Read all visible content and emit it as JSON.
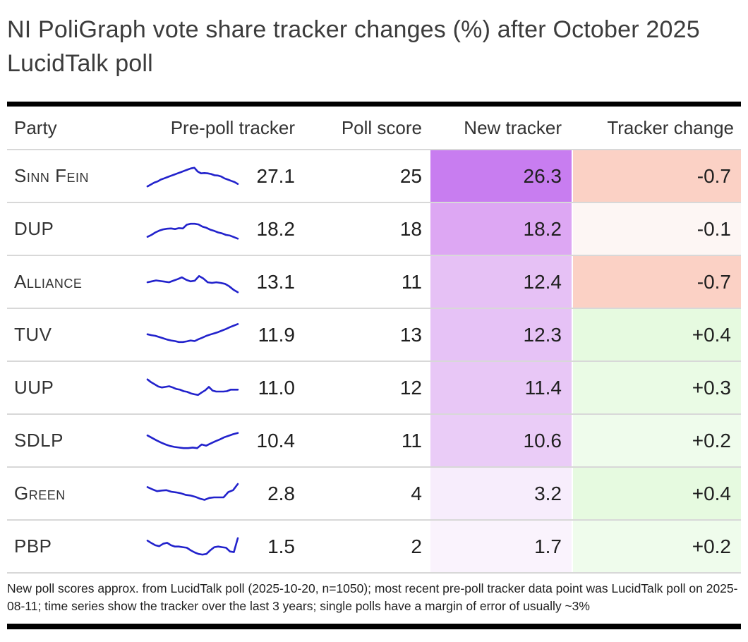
{
  "title": "NI PoliGraph vote share tracker changes (%) after October 2025 LucidTalk poll",
  "columns": [
    "Party",
    "Pre-poll tracker",
    "Poll score",
    "New tracker",
    "Tracker change"
  ],
  "footnote": "New poll scores approx. from LucidTalk poll (2025-10-20, n=1050); most recent pre-poll tracker data point was LucidTalk poll on 2025-08-11; time series show the tracker over the last 3 years; single polls have a margin of error of usually ~3%",
  "colors": {
    "spark_line": "#2222cc",
    "rule": "#000000",
    "negative_strong": "#fbd1c5",
    "negative_weak": "#fdf6f4",
    "positive_strong": "#e6fae0",
    "new_tracker_base": "#c87df0"
  },
  "chart_data": {
    "type": "table",
    "title": "NI PoliGraph vote share tracker changes (%) after October 2025 LucidTalk poll",
    "columns": [
      "Party",
      "Pre-poll tracker",
      "Poll score",
      "New tracker",
      "Tracker change"
    ],
    "sparkline_note": "time series show the tracker over the last 3 years",
    "rows": [
      {
        "party": "Sinn Fein",
        "pre_poll": "27.1",
        "poll_score": "25",
        "new_tracker": "26.3",
        "change": "-0.7",
        "new_bg": "#c87df0",
        "chg_bg": "#fbd1c5",
        "spark": [
          20,
          26,
          32,
          36,
          42,
          46,
          50,
          54,
          58,
          62,
          66,
          70,
          74,
          78,
          80,
          68,
          62,
          63,
          62,
          60,
          56,
          55,
          52,
          46,
          42,
          38,
          34,
          28
        ]
      },
      {
        "party": "DUP",
        "pre_poll": "18.2",
        "poll_score": "18",
        "new_tracker": "18.2",
        "change": "-0.1",
        "new_bg": "#dda7f3",
        "chg_bg": "#fdf6f4",
        "spark": [
          28,
          34,
          42,
          48,
          52,
          54,
          55,
          53,
          56,
          55,
          67,
          70,
          70,
          68,
          61,
          57,
          51,
          47,
          42,
          39,
          34,
          32,
          27,
          22
        ]
      },
      {
        "party": "Alliance",
        "pre_poll": "13.1",
        "poll_score": "11",
        "new_tracker": "12.4",
        "change": "-0.7",
        "new_bg": "#e6c1f5",
        "chg_bg": "#fbd1c5",
        "spark": [
          52,
          55,
          58,
          56,
          54,
          52,
          57,
          62,
          68,
          60,
          55,
          57,
          72,
          64,
          52,
          50,
          52,
          50,
          47,
          39,
          28,
          20
        ]
      },
      {
        "party": "TUV",
        "pre_poll": "11.9",
        "poll_score": "13",
        "new_tracker": "12.3",
        "change": "+0.4",
        "new_bg": "#e6c2f6",
        "chg_bg": "#e6fae0",
        "spark": [
          55,
          52,
          50,
          46,
          42,
          38,
          35,
          33,
          30,
          30,
          32,
          35,
          33,
          39,
          44,
          50,
          54,
          58,
          62,
          67,
          72,
          78,
          83,
          88
        ]
      },
      {
        "party": "UUP",
        "pre_poll": "11.0",
        "poll_score": "12",
        "new_tracker": "11.4",
        "change": "+0.3",
        "new_bg": "#e8c7f6",
        "chg_bg": "#eafbe5",
        "spark": [
          80,
          71,
          64,
          57,
          54,
          56,
          58,
          54,
          49,
          47,
          42,
          40,
          35,
          32,
          30,
          38,
          45,
          56,
          44,
          41,
          41,
          41,
          42,
          47,
          47,
          47
        ]
      },
      {
        "party": "SDLP",
        "pre_poll": "10.4",
        "poll_score": "11",
        "new_tracker": "10.6",
        "change": "+0.2",
        "new_bg": "#eaccf7",
        "chg_bg": "#effcec",
        "spark": [
          70,
          62,
          54,
          47,
          41,
          36,
          33,
          31,
          29,
          29,
          31,
          29,
          41,
          37,
          44,
          51,
          57,
          64,
          69,
          74,
          78
        ]
      },
      {
        "party": "Green",
        "pre_poll": "2.8",
        "poll_score": "4",
        "new_tracker": "3.2",
        "change": "+0.4",
        "new_bg": "#f7edfc",
        "chg_bg": "#e6fae0",
        "spark": [
          74,
          67,
          61,
          63,
          64,
          59,
          57,
          54,
          49,
          47,
          43,
          37,
          33,
          39,
          41,
          41,
          41,
          58,
          64,
          84
        ]
      },
      {
        "party": "PBP",
        "pre_poll": "1.5",
        "poll_score": "2",
        "new_tracker": "1.7",
        "change": "+0.2",
        "new_bg": "#faf3fd",
        "chg_bg": "#effcec",
        "spark": [
          72,
          64,
          57,
          54,
          62,
          65,
          57,
          53,
          53,
          51,
          49,
          41,
          34,
          29,
          27,
          29,
          41,
          51,
          53,
          51,
          49,
          37,
          35,
          80
        ]
      }
    ]
  }
}
